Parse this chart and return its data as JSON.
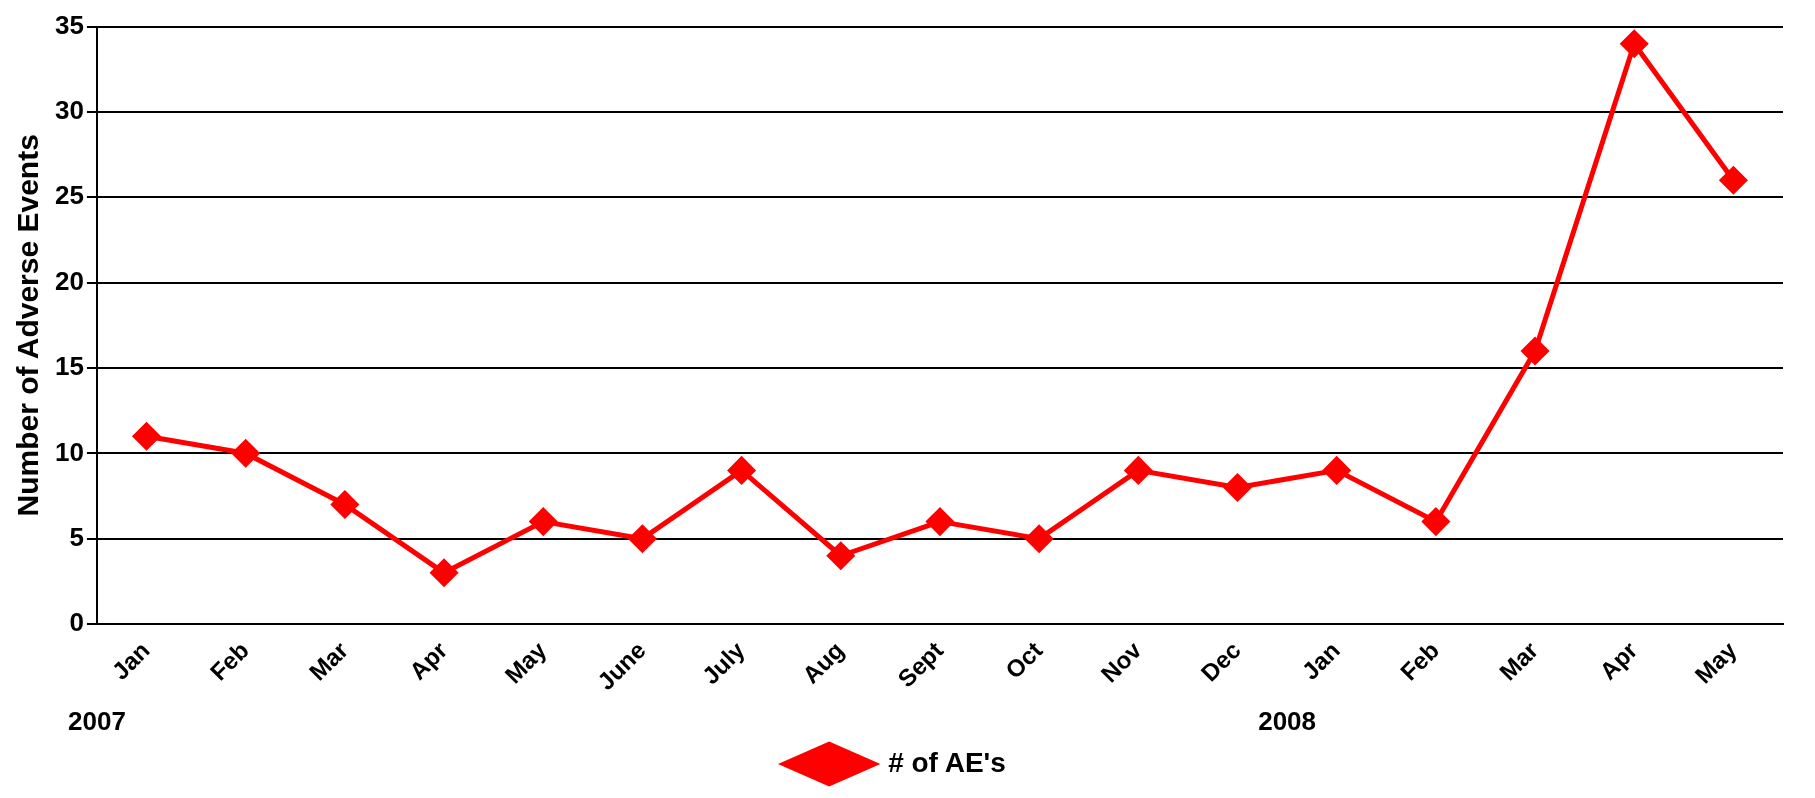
{
  "chart_data": {
    "type": "line",
    "ylabel": "Number of Adverse Events",
    "categories": [
      "Jan",
      "Feb",
      "Mar",
      "Apr",
      "May",
      "June",
      "July",
      "Aug",
      "Sept",
      "Oct",
      "Nov",
      "Dec",
      "Jan",
      "Feb",
      "Mar",
      "Apr",
      "May"
    ],
    "series": [
      {
        "name": "# of AE's",
        "color": "#ff0000",
        "values": [
          11,
          10,
          7,
          3,
          6,
          5,
          9,
          4,
          6,
          5,
          9,
          8,
          9,
          6,
          16,
          34,
          26
        ]
      }
    ],
    "ylim": [
      0,
      35
    ],
    "yticks": [
      0,
      5,
      10,
      15,
      20,
      25,
      30,
      35
    ],
    "grid": "y",
    "legend": "bottom",
    "marker": "diamond",
    "line_style": "solid",
    "annotations": [
      "2007",
      "2008"
    ]
  }
}
